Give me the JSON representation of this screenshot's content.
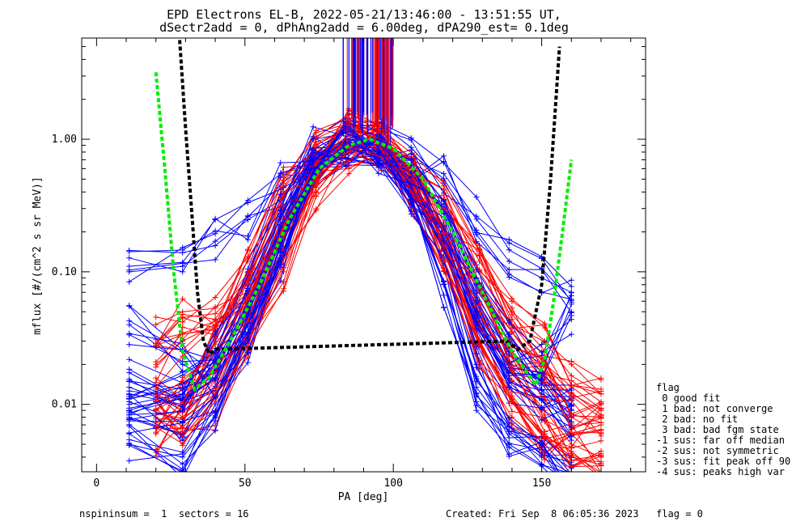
{
  "title_line1": "EPD Electrons EL-B, 2022-05-21/13:46:00 - 13:51:55 UT,",
  "title_line2": "dSectr2add = 0, dPhAng2add = 6.00deg, dPA290_est=   0.1deg",
  "footer_left": "nspininsum =  1  sectors = 16",
  "footer_right": "Created: Fri Sep  8 06:05:36 2023   flag = 0",
  "legend": {
    "title": "flag",
    "items": [
      " 0 good fit",
      " 1 bad: not converge",
      " 2 bad: no fit",
      " 3 bad: bad fgm state",
      "-1 sus: far off median",
      "-2 sus: not symmetric",
      "-3 sus: fit peak off 90",
      "-4 sus: peaks high var"
    ]
  },
  "colors": {
    "series_a": "#ff0000",
    "series_b": "#0000ff",
    "fit_green": "#00ee00",
    "fit_black": "#000000"
  },
  "chart_data": {
    "type": "line",
    "xlabel": "PA [deg]",
    "ylabel": "mflux [#/(cm^2 s sr MeV)]",
    "xlim": [
      -5,
      185
    ],
    "ylim": [
      0.0031,
      5.8
    ],
    "yscale": "log",
    "x_ticks": [
      0,
      50,
      100,
      150
    ],
    "y_ticks": [
      {
        "v": 0.01,
        "label": "0.01"
      },
      {
        "v": 0.1,
        "label": "0.10"
      },
      {
        "v": 1.0,
        "label": "1.00"
      }
    ],
    "spike_x_range": [
      83,
      100
    ],
    "series": [
      {
        "color": "red",
        "pa": [
          20,
          29,
          40,
          51,
          63,
          74,
          85,
          96,
          107,
          117,
          129,
          140,
          151,
          160,
          170
        ],
        "curves": [
          [
            0.009,
            0.012,
            0.02,
            0.05,
            0.18,
            0.55,
            1.1,
            0.9,
            0.48,
            0.18,
            0.06,
            0.025,
            0.014,
            0.008,
            0.006
          ],
          [
            0.006,
            0.009,
            0.03,
            0.09,
            0.3,
            0.7,
            1.3,
            0.8,
            0.55,
            0.22,
            0.04,
            0.018,
            0.009,
            0.005,
            0.004
          ],
          [
            0.04,
            0.05,
            0.053,
            0.12,
            0.43,
            0.8,
            1.2,
            1.0,
            0.5,
            0.3,
            0.1,
            0.04,
            0.02,
            0.012,
            0.009
          ],
          [
            0.012,
            0.008,
            0.015,
            0.04,
            0.14,
            0.6,
            1.0,
            0.95,
            0.42,
            0.15,
            0.03,
            0.011,
            0.006,
            0.004,
            0.0035
          ],
          [
            0.02,
            0.03,
            0.04,
            0.07,
            0.25,
            0.5,
            0.9,
            0.85,
            0.6,
            0.35,
            0.12,
            0.05,
            0.03,
            0.02,
            0.012
          ],
          [
            0.008,
            0.006,
            0.009,
            0.03,
            0.1,
            0.4,
            0.8,
            0.75,
            0.35,
            0.12,
            0.02,
            0.008,
            0.005,
            0.006,
            0.007
          ]
        ]
      },
      {
        "color": "blue",
        "pa": [
          11,
          29,
          40,
          51,
          62,
          73,
          84,
          95,
          106,
          117,
          128,
          139,
          150,
          160
        ],
        "curves": [
          [
            0.1,
            0.11,
            0.17,
            0.26,
            0.45,
            0.75,
            1.0,
            0.9,
            0.7,
            0.55,
            0.25,
            0.12,
            0.09,
            0.07
          ],
          [
            0.04,
            0.02,
            0.015,
            0.04,
            0.15,
            0.6,
            0.9,
            0.85,
            0.45,
            0.2,
            0.05,
            0.02,
            0.012,
            0.009
          ],
          [
            0.012,
            0.01,
            0.02,
            0.05,
            0.2,
            0.7,
            1.0,
            0.95,
            0.5,
            0.2,
            0.06,
            0.025,
            0.015,
            0.01
          ],
          [
            0.008,
            0.006,
            0.012,
            0.035,
            0.16,
            0.65,
            0.95,
            0.9,
            0.4,
            0.12,
            0.02,
            0.006,
            0.004,
            0.003
          ],
          [
            0.015,
            0.013,
            0.018,
            0.06,
            0.22,
            0.72,
            0.85,
            0.8,
            0.5,
            0.18,
            0.04,
            0.015,
            0.011,
            0.008
          ],
          [
            0.005,
            0.004,
            0.008,
            0.03,
            0.12,
            0.6,
            0.9,
            0.85,
            0.35,
            0.08,
            0.012,
            0.005,
            0.0035,
            0.003
          ],
          [
            0.01,
            0.012,
            0.03,
            0.1,
            0.35,
            0.85,
            0.9,
            0.8,
            0.6,
            0.3,
            0.08,
            0.03,
            0.02,
            0.05
          ]
        ]
      }
    ],
    "fit_green": {
      "x": [
        20,
        23,
        26,
        29,
        33,
        38,
        45,
        55,
        65,
        75,
        85,
        92,
        100,
        110,
        120,
        130,
        140,
        148,
        151,
        154,
        157,
        160
      ],
      "y": [
        3.2,
        0.6,
        0.1,
        0.025,
        0.013,
        0.016,
        0.03,
        0.08,
        0.25,
        0.6,
        0.9,
        1.0,
        0.85,
        0.5,
        0.2,
        0.07,
        0.025,
        0.014,
        0.022,
        0.06,
        0.2,
        0.7
      ]
    },
    "fit_black": {
      "x": [
        28,
        30,
        32,
        34,
        36,
        38,
        40,
        138,
        142,
        146,
        150,
        153,
        156
      ],
      "y": [
        5.6,
        1.2,
        0.3,
        0.07,
        0.03,
        0.024,
        0.026,
        0.03,
        0.026,
        0.03,
        0.08,
        0.5,
        5.0
      ]
    }
  }
}
